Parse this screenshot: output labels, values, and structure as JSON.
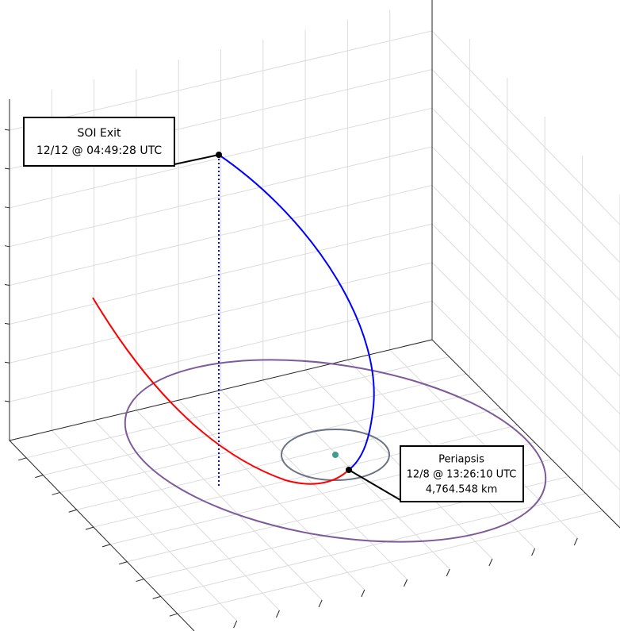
{
  "annotations": [
    {
      "title": "SOI Exit",
      "time": "12/12 @ 04:49:28 UTC"
    },
    {
      "title": "Periapsis",
      "time": "12/8 @ 13:26:10 UTC",
      "distance": "4,764.548 km"
    }
  ]
}
